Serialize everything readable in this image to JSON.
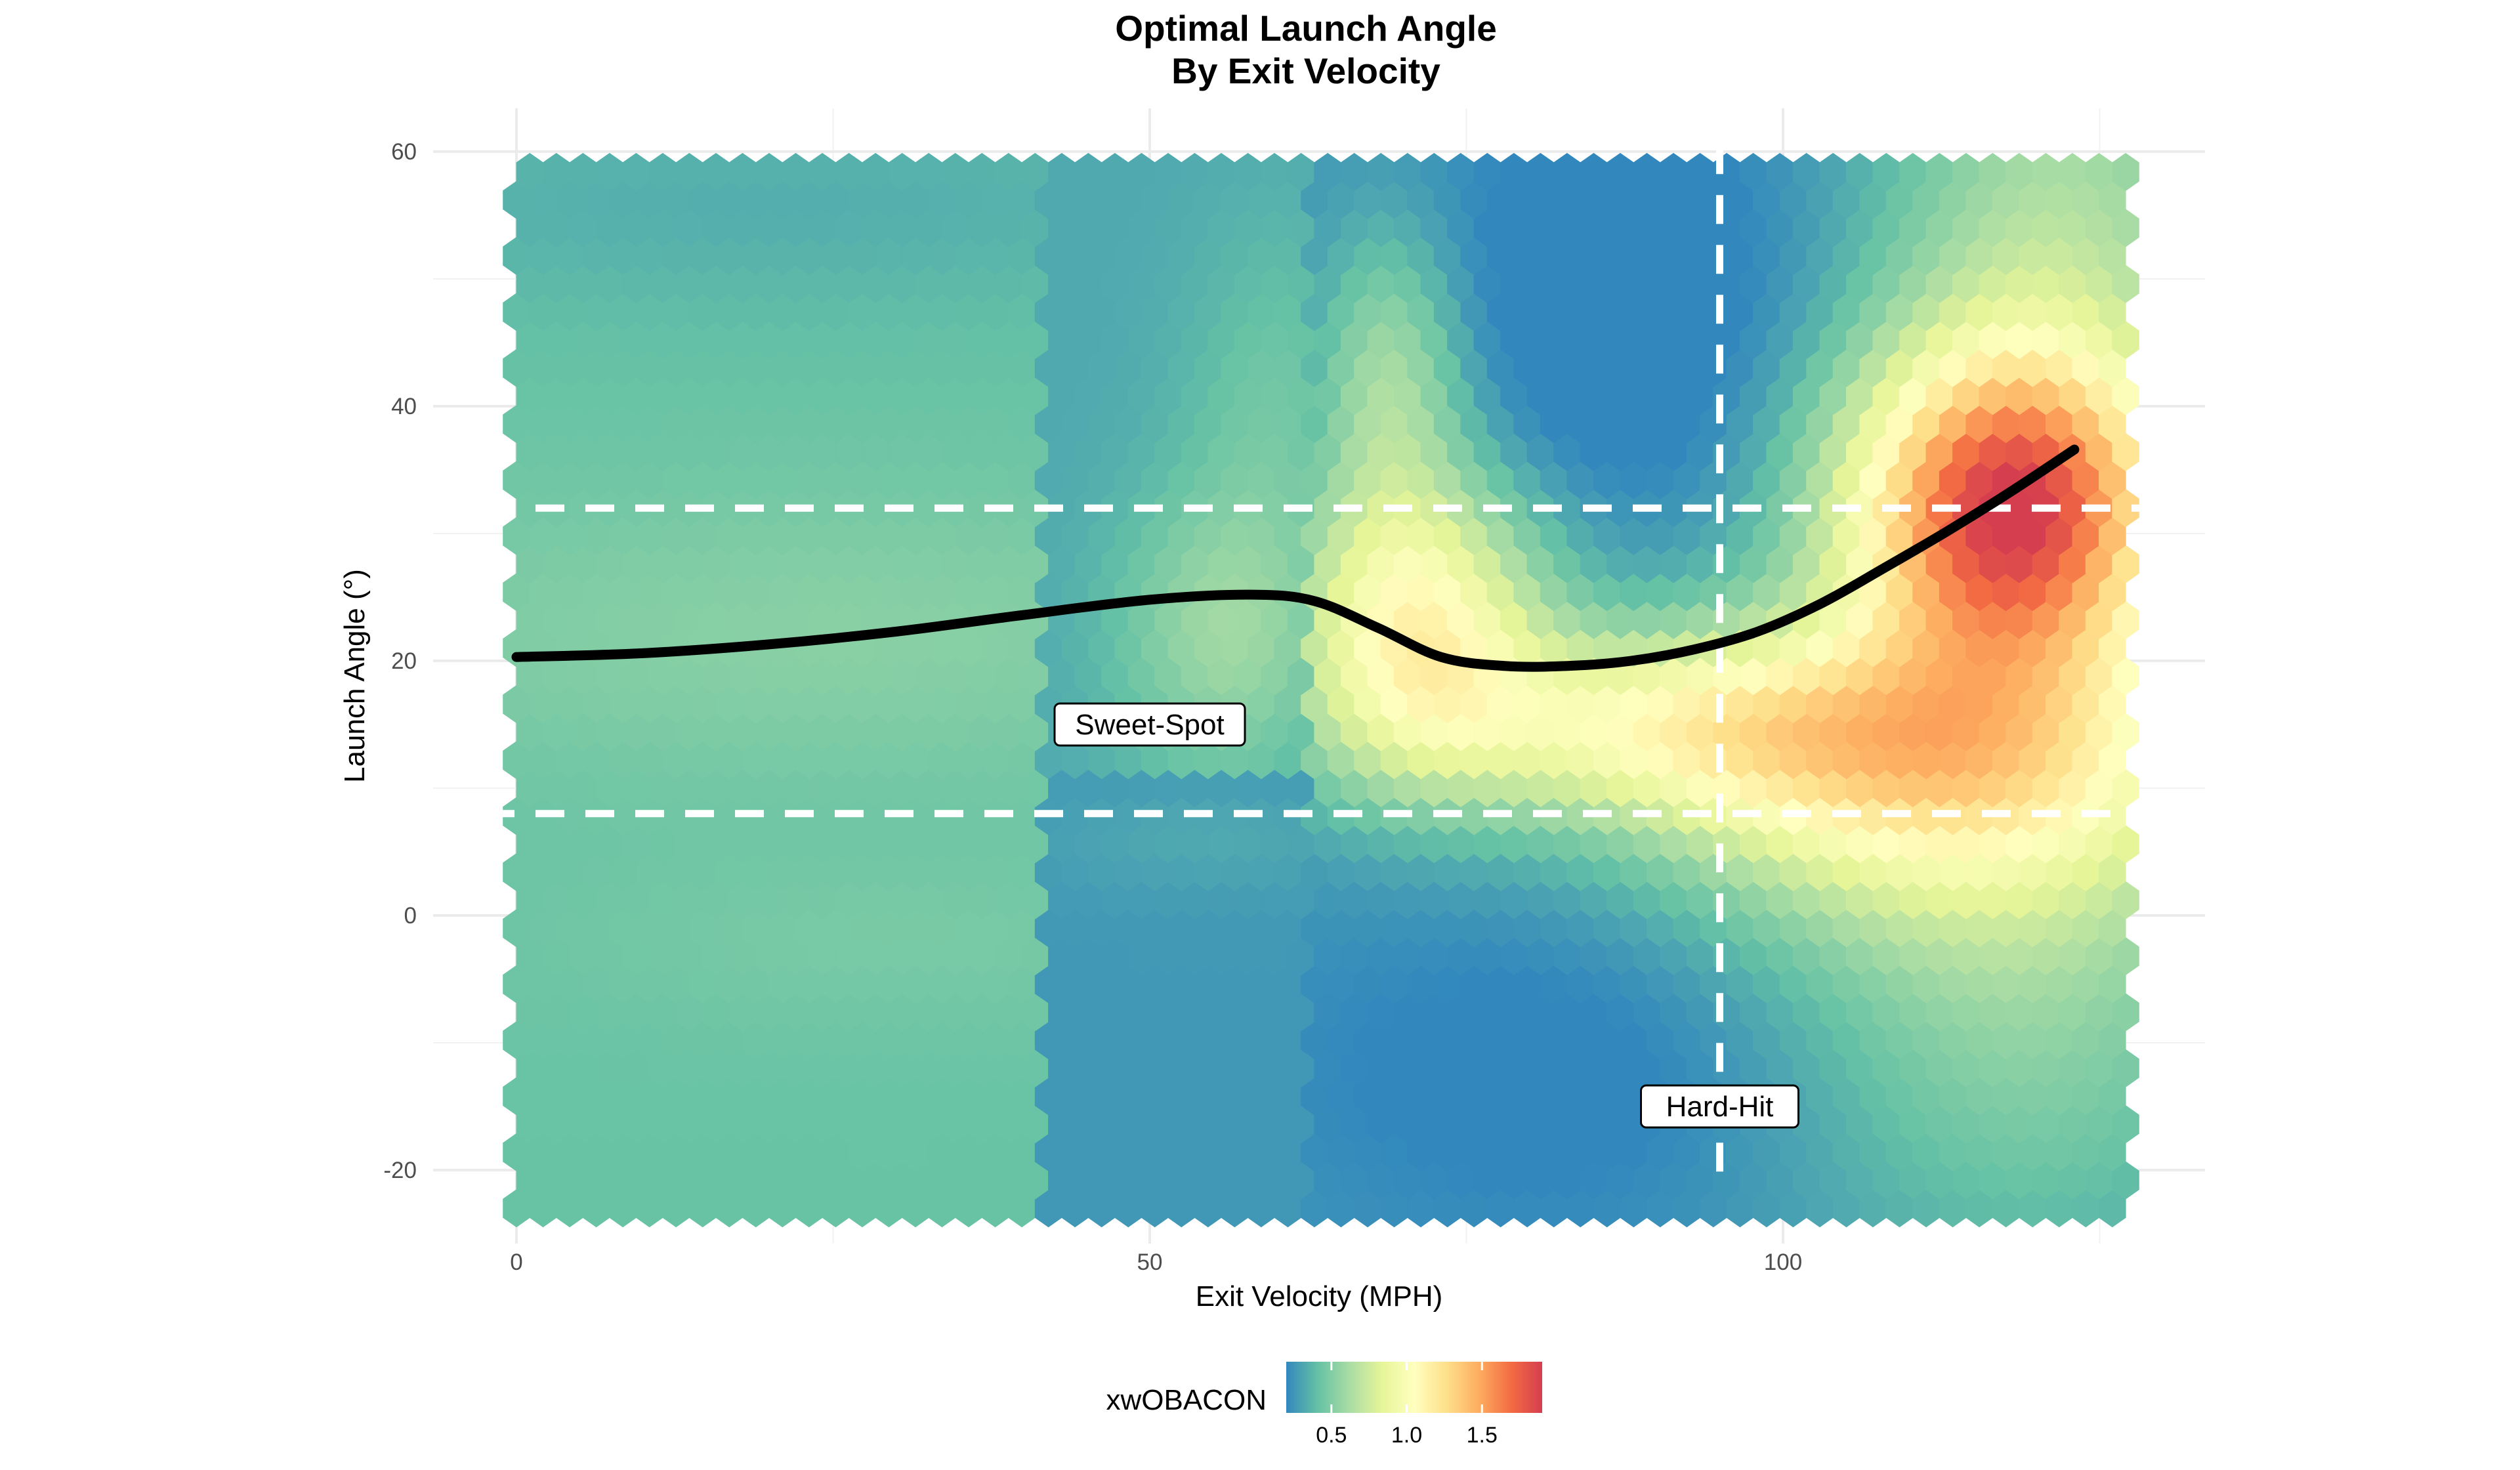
{
  "chart_data": {
    "type": "heatmap",
    "subtype": "hexbin",
    "title_line1": "Optimal Launch Angle",
    "title_line2": "By Exit Velocity",
    "xlabel": "Exit Velocity (MPH)",
    "ylabel": "Launch Angle (°)",
    "xlim": [
      -4,
      133
    ],
    "ylim": [
      -25,
      64
    ],
    "x_ticks": [
      0,
      50,
      100
    ],
    "y_ticks": [
      -20,
      0,
      20,
      40,
      60
    ],
    "grid": true,
    "legend": {
      "title": "xwOBACON",
      "position": "bottom",
      "ticks": [
        0.5,
        1.0,
        1.5
      ],
      "tick_labels": [
        "0.5",
        "1.0",
        "1.5"
      ],
      "range": [
        0.2,
        1.9
      ],
      "colors": [
        "#3288bd",
        "#66c2a5",
        "#abdda4",
        "#e6f598",
        "#ffffbf",
        "#fee08b",
        "#fdae61",
        "#f46d43",
        "#d53e4f"
      ]
    },
    "reference_lines": {
      "hard_hit_velocity": 95,
      "sweet_spot_low": 8,
      "sweet_spot_high": 32,
      "color": "#ffffff",
      "style": "dashed"
    },
    "annotations": [
      {
        "label": "Sweet-Spot",
        "x": 50,
        "y": 15
      },
      {
        "label": "Hard-Hit",
        "x": 95,
        "y": -15
      }
    ],
    "optimal_curve": {
      "x": [
        0,
        10,
        20,
        30,
        40,
        50,
        58,
        63,
        68,
        73,
        78,
        83,
        88,
        93,
        98,
        103,
        108,
        113,
        118,
        123
      ],
      "y": [
        20.3,
        20.6,
        21.3,
        22.3,
        23.6,
        24.8,
        25.2,
        24.7,
        22.6,
        20.3,
        19.6,
        19.6,
        20.0,
        20.9,
        22.3,
        24.5,
        27.3,
        30.2,
        33.3,
        36.6
      ]
    },
    "hexbin": {
      "x_range": [
        0,
        128
      ],
      "y_range": [
        -23,
        60
      ],
      "value_range": [
        0.2,
        1.9
      ]
    }
  }
}
